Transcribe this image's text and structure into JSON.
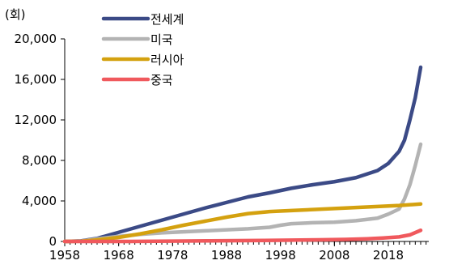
{
  "chart_data": {
    "type": "line",
    "unit_label": "(회)",
    "title": "",
    "xlabel": "",
    "ylabel": "",
    "xlim": [
      1958,
      2023
    ],
    "ylim": [
      0,
      20000
    ],
    "x_ticks": [
      1958,
      1968,
      1978,
      1988,
      1998,
      2008,
      2018
    ],
    "x_tick_labels": [
      "1958",
      "1968",
      "1978",
      "1988",
      "1998",
      "2008",
      "2018"
    ],
    "y_ticks": [
      0,
      4000,
      8000,
      12000,
      16000,
      20000
    ],
    "y_tick_labels": [
      "0",
      "4,000",
      "8,000",
      "12,000",
      "16,000",
      "20,000"
    ],
    "legend_position": "top-center",
    "series": [
      {
        "name": "전세계",
        "color": "#3b4a86",
        "points": [
          [
            1958,
            0
          ],
          [
            1961,
            50
          ],
          [
            1964,
            300
          ],
          [
            1968,
            900
          ],
          [
            1972,
            1500
          ],
          [
            1976,
            2100
          ],
          [
            1980,
            2700
          ],
          [
            1984,
            3300
          ],
          [
            1988,
            3850
          ],
          [
            1992,
            4400
          ],
          [
            1996,
            4800
          ],
          [
            2000,
            5250
          ],
          [
            2004,
            5600
          ],
          [
            2008,
            5900
          ],
          [
            2012,
            6300
          ],
          [
            2016,
            7000
          ],
          [
            2018,
            7700
          ],
          [
            2020,
            8900
          ],
          [
            2021,
            10000
          ],
          [
            2022,
            12000
          ],
          [
            2023,
            14200
          ],
          [
            2024,
            17200
          ]
        ]
      },
      {
        "name": "미국",
        "color": "#b3b3b3",
        "points": [
          [
            1958,
            0
          ],
          [
            1961,
            30
          ],
          [
            1964,
            250
          ],
          [
            1968,
            500
          ],
          [
            1972,
            700
          ],
          [
            1976,
            850
          ],
          [
            1980,
            950
          ],
          [
            1984,
            1050
          ],
          [
            1988,
            1150
          ],
          [
            1992,
            1250
          ],
          [
            1996,
            1400
          ],
          [
            1998,
            1600
          ],
          [
            2000,
            1750
          ],
          [
            2004,
            1850
          ],
          [
            2008,
            1900
          ],
          [
            2012,
            2050
          ],
          [
            2016,
            2300
          ],
          [
            2018,
            2700
          ],
          [
            2020,
            3200
          ],
          [
            2021,
            4200
          ],
          [
            2022,
            5600
          ],
          [
            2023,
            7500
          ],
          [
            2024,
            9600
          ]
        ]
      },
      {
        "name": "러시아",
        "color": "#d4a10f",
        "points": [
          [
            1958,
            0
          ],
          [
            1961,
            20
          ],
          [
            1964,
            150
          ],
          [
            1968,
            400
          ],
          [
            1972,
            750
          ],
          [
            1976,
            1150
          ],
          [
            1980,
            1600
          ],
          [
            1984,
            2000
          ],
          [
            1988,
            2400
          ],
          [
            1992,
            2750
          ],
          [
            1996,
            2950
          ],
          [
            2000,
            3050
          ],
          [
            2004,
            3150
          ],
          [
            2008,
            3250
          ],
          [
            2012,
            3350
          ],
          [
            2016,
            3450
          ],
          [
            2020,
            3550
          ],
          [
            2024,
            3700
          ]
        ]
      },
      {
        "name": "중국",
        "color": "#f0595d",
        "points": [
          [
            1958,
            0
          ],
          [
            1970,
            0
          ],
          [
            1975,
            20
          ],
          [
            1980,
            40
          ],
          [
            1985,
            60
          ],
          [
            1990,
            80
          ],
          [
            1995,
            100
          ],
          [
            2000,
            130
          ],
          [
            2005,
            160
          ],
          [
            2010,
            200
          ],
          [
            2014,
            260
          ],
          [
            2017,
            340
          ],
          [
            2020,
            450
          ],
          [
            2022,
            650
          ],
          [
            2024,
            1100
          ]
        ]
      }
    ]
  }
}
